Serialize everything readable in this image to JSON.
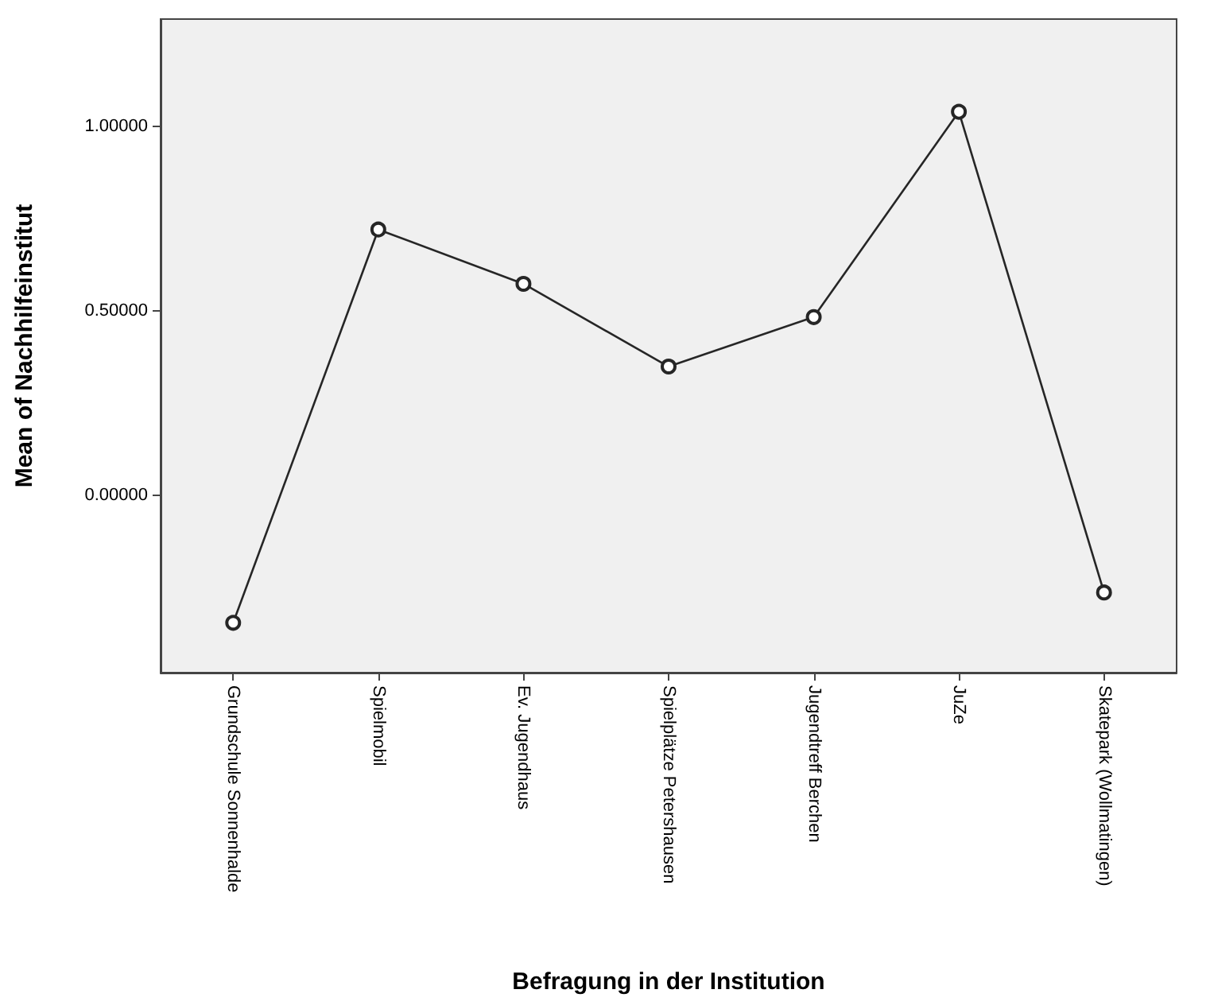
{
  "chart_data": {
    "type": "line",
    "xlabel": "Befragung in der Institution",
    "ylabel": "Mean of Nachhilfeinstitut",
    "categories": [
      "Grundschule Sonnenhalde",
      "Spielmobil",
      "Ev. Jugendhaus",
      "Spielplätze Petershausen",
      "Jugendtreff Berchen",
      "JuZe",
      "Skatepark (Wollmatingen)"
    ],
    "series": [
      {
        "color": "#262626",
        "values": [
          -0.345,
          0.72,
          0.573,
          0.349,
          0.483,
          1.039,
          -0.263
        ]
      }
    ],
    "ylim": [
      -0.48,
      1.29
    ],
    "yticks": [
      {
        "value": 0,
        "label": "0.00000"
      },
      {
        "value": 0.5,
        "label": "0.50000"
      },
      {
        "value": 1,
        "label": "1.00000"
      }
    ],
    "marker": "circle",
    "line_style": "solid",
    "grid": false
  }
}
